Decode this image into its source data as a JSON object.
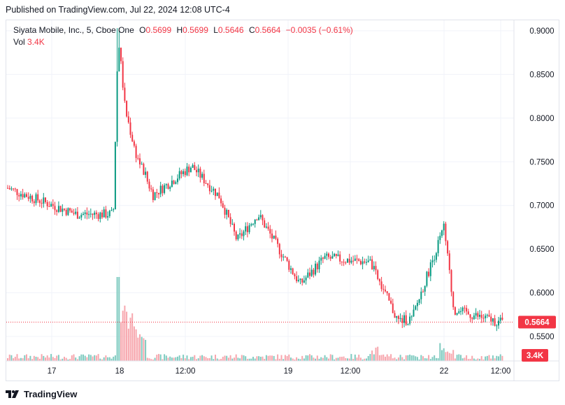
{
  "published": "Published on TradingView.com, Jul 22, 2024 12:08 UTC-4",
  "legend": {
    "symbol": "Siyata Mobile, Inc., 5, Cboe One",
    "open_label": "O",
    "open": "0.5699",
    "high_label": "H",
    "high": "0.5699",
    "low_label": "L",
    "low": "0.5646",
    "close_label": "C",
    "close": "0.5664",
    "change": "−0.0035 (−0.61%)",
    "vol_label": "Vol",
    "vol": "3.4K"
  },
  "price_badge": "0.5664",
  "volume_badge": "3.4K",
  "brand": "TradingView",
  "colors": {
    "up": "#089981",
    "down": "#f23645",
    "up_volume": "#7fcbc0",
    "down_volume": "#f7a6ad",
    "grid": "#f0f3fa",
    "price_line": "#f23645"
  },
  "chart_data": {
    "type": "candlestick",
    "symbol": "Siyata Mobile, Inc.",
    "interval": "5",
    "exchange": "Cboe One",
    "x_ticks": [
      "17",
      "18",
      "12:00",
      "19",
      "12:00",
      "22",
      "12:00"
    ],
    "y_ticks": [
      "0.9000",
      "0.8500",
      "0.8000",
      "0.7500",
      "0.7000",
      "0.6500",
      "0.6000",
      "0.5500"
    ],
    "ylim": [
      0.522,
      0.912
    ],
    "last_price": 0.5664,
    "last_volume": "3.4K",
    "grid": true,
    "ohlc_keypoints": [
      {
        "at": "17 start",
        "price": 0.72
      },
      {
        "at": "17",
        "price": 0.705
      },
      {
        "at": "17 late",
        "price": 0.69
      },
      {
        "at": "17 close",
        "price": 0.69
      },
      {
        "at": "18 open spike",
        "high": 0.9,
        "price": 0.895
      },
      {
        "at": "18",
        "price": 0.81
      },
      {
        "at": "18",
        "price": 0.76
      },
      {
        "at": "18 12:00",
        "price": 0.712
      },
      {
        "at": "18 afternoon",
        "high": 0.755,
        "price": 0.745
      },
      {
        "at": "18 late",
        "price": 0.71
      },
      {
        "at": "19 open",
        "price": 0.66
      },
      {
        "at": "19",
        "price": 0.69
      },
      {
        "at": "19 morning",
        "price": 0.61
      },
      {
        "at": "19 12:00",
        "price": 0.64
      },
      {
        "at": "19 late",
        "price": 0.635
      },
      {
        "at": "19 close",
        "price": 0.568
      },
      {
        "at": "22 pre",
        "price": 0.57
      },
      {
        "at": "22 open spike",
        "high": 0.682,
        "price": 0.675
      },
      {
        "at": "22",
        "price": 0.58
      },
      {
        "at": "22 12:00",
        "price": 0.5664
      }
    ],
    "volume": [
      {
        "at": "17",
        "value": 0.06
      },
      {
        "at": "18 open",
        "value": 1.0
      },
      {
        "at": "18",
        "value": 0.6
      },
      {
        "at": "18 12:00",
        "value": 0.14
      },
      {
        "at": "19",
        "value": 0.12
      },
      {
        "at": "22 open",
        "value": 0.3
      },
      {
        "at": "22 12:00",
        "value": 0.02
      }
    ]
  }
}
